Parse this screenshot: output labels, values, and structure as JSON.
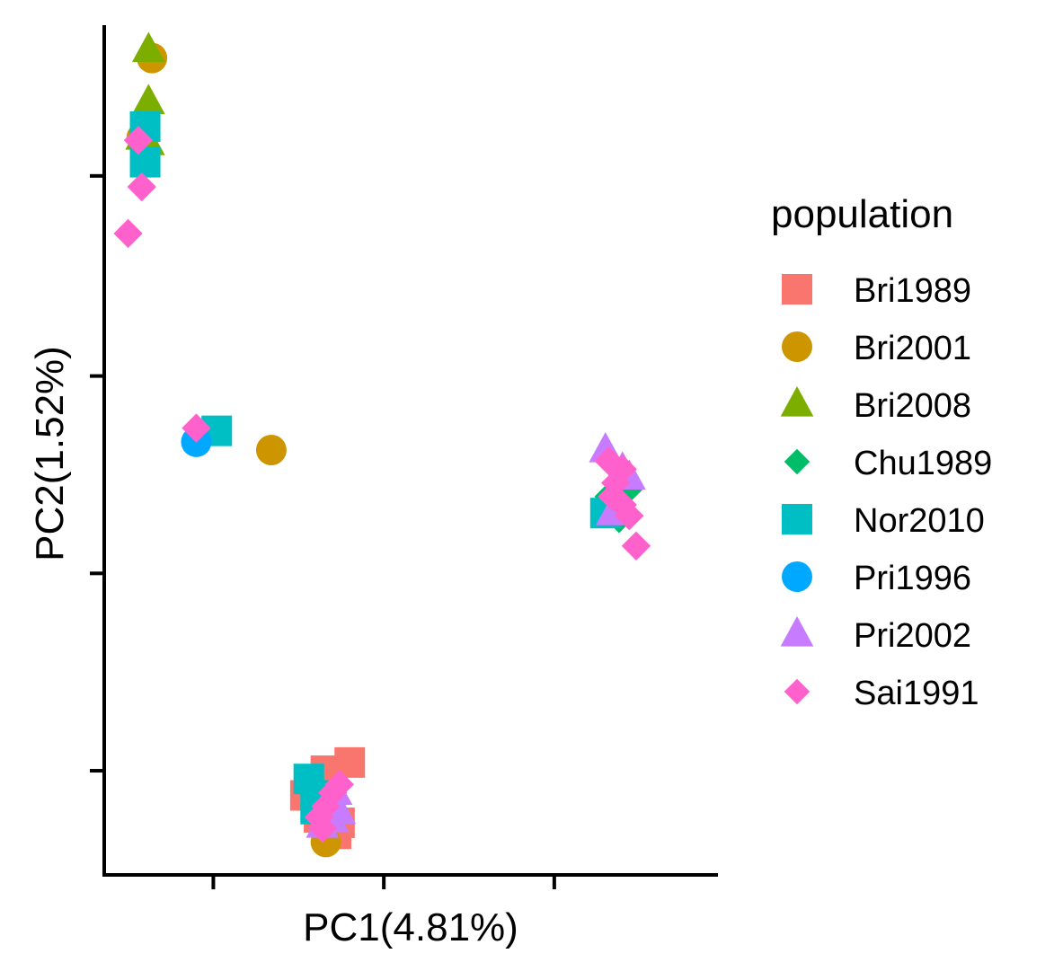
{
  "chart_data": {
    "type": "scatter",
    "title": "",
    "xlabel": "PC1(4.81%)",
    "ylabel": "PC2(1.52%)",
    "xlim": [
      -0.065,
      0.115
    ],
    "ylim": [
      -0.115,
      0.195
    ],
    "x_ticks": [
      -0.033,
      0.017,
      0.067
    ],
    "y_ticks": [
      0.14,
      0.067,
      -0.005,
      -0.077
    ],
    "tick_labels_shown": false,
    "grid": false,
    "legend": {
      "title": "population",
      "placement": "right"
    },
    "series": [
      {
        "name": "Bri1989",
        "color": "#F8766D",
        "shape": "square",
        "points": [
          [
            0.0,
            -0.077
          ],
          [
            0.007,
            -0.074
          ],
          [
            -0.006,
            -0.086
          ],
          [
            -0.002,
            -0.094
          ],
          [
            0.004,
            -0.096
          ],
          [
            0.003,
            -0.1
          ],
          [
            -0.001,
            -0.092
          ],
          [
            -0.003,
            -0.084
          ]
        ]
      },
      {
        "name": "Bri2001",
        "color": "#CD9600",
        "shape": "circle",
        "points": [
          [
            -0.051,
            0.183
          ],
          [
            -0.054,
            0.154
          ],
          [
            -0.016,
            0.04
          ],
          [
            0.0,
            -0.103
          ]
        ]
      },
      {
        "name": "Bri2008",
        "color": "#7CAE00",
        "shape": "triangle",
        "points": [
          [
            -0.052,
            0.186
          ],
          [
            -0.052,
            0.167
          ],
          [
            -0.054,
            0.154
          ],
          [
            -0.052,
            0.152
          ]
        ]
      },
      {
        "name": "Chu1989",
        "color": "#00BE67",
        "shape": "diamond",
        "points": [
          [
            0.087,
            0.031
          ],
          [
            0.085,
            0.02
          ],
          [
            0.083,
            0.023
          ],
          [
            0.089,
            0.026
          ],
          [
            0.086,
            0.015
          ]
        ]
      },
      {
        "name": "Nor2010",
        "color": "#00BFC4",
        "shape": "square",
        "points": [
          [
            -0.053,
            0.158
          ],
          [
            -0.053,
            0.145
          ],
          [
            -0.032,
            0.047
          ],
          [
            -0.005,
            -0.08
          ],
          [
            -0.003,
            -0.091
          ],
          [
            0.001,
            -0.086
          ],
          [
            0.082,
            0.017
          ]
        ]
      },
      {
        "name": "Pri1996",
        "color": "#00A9FF",
        "shape": "circle",
        "points": [
          [
            -0.038,
            0.043
          ]
        ]
      },
      {
        "name": "Pri2002",
        "color": "#C77CFF",
        "shape": "triangle",
        "points": [
          [
            0.082,
            0.04
          ],
          [
            0.087,
            0.033
          ],
          [
            0.089,
            0.03
          ],
          [
            0.084,
            0.017
          ],
          [
            -0.001,
            -0.097
          ],
          [
            0.002,
            -0.095
          ],
          [
            0.004,
            -0.092
          ],
          [
            0.003,
            -0.085
          ]
        ]
      },
      {
        "name": "Sai1991",
        "color": "#FF61CC",
        "shape": "diamond",
        "points": [
          [
            -0.055,
            0.153
          ],
          [
            -0.054,
            0.136
          ],
          [
            -0.058,
            0.119
          ],
          [
            -0.038,
            0.048
          ],
          [
            0.083,
            0.036
          ],
          [
            0.087,
            0.033
          ],
          [
            0.085,
            0.028
          ],
          [
            0.084,
            0.023
          ],
          [
            0.087,
            0.02
          ],
          [
            0.089,
            0.016
          ],
          [
            0.091,
            0.005
          ],
          [
            0.004,
            -0.082
          ],
          [
            0.002,
            -0.085
          ],
          [
            0.0,
            -0.09
          ],
          [
            -0.002,
            -0.094
          ],
          [
            -0.001,
            -0.098
          ]
        ]
      }
    ]
  }
}
